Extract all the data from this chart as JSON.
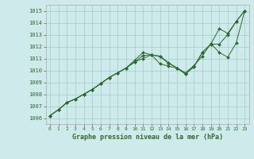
{
  "xlabel": "Graphe pression niveau de la mer (hPa)",
  "xlim": [
    -0.5,
    23.5
  ],
  "ylim": [
    1005.5,
    1015.5
  ],
  "yticks": [
    1006,
    1007,
    1008,
    1009,
    1010,
    1011,
    1012,
    1013,
    1014,
    1015
  ],
  "xticks": [
    0,
    1,
    2,
    3,
    4,
    5,
    6,
    7,
    8,
    9,
    10,
    11,
    12,
    13,
    14,
    15,
    16,
    17,
    18,
    19,
    20,
    21,
    22,
    23
  ],
  "bg_color": "#ceeaea",
  "grid_color": "#9ecece",
  "line_color": "#2d6a2d",
  "lines": [
    [
      1006.2,
      1006.7,
      1007.3,
      1007.6,
      1008.0,
      1008.4,
      1008.9,
      1009.4,
      1009.8,
      1010.2,
      1010.7,
      1011.25,
      1011.3,
      1011.15,
      1010.6,
      1010.2,
      1009.7,
      1010.3,
      1011.5,
      1012.2,
      1012.2,
      1013.0,
      1014.1,
      1015.0
    ],
    [
      1006.2,
      1006.7,
      1007.3,
      1007.6,
      1008.0,
      1008.4,
      1008.9,
      1009.4,
      1009.8,
      1010.2,
      1010.85,
      1011.5,
      1011.3,
      1010.55,
      1010.35,
      1010.2,
      1009.8,
      1010.4,
      1011.2,
      1012.25,
      1011.5,
      1011.1,
      1012.3,
      1015.0
    ],
    [
      1006.2,
      1006.7,
      1007.3,
      1007.6,
      1008.0,
      1008.4,
      1008.9,
      1009.4,
      1009.8,
      1010.2,
      1010.7,
      1011.0,
      1011.3,
      1011.2,
      1010.65,
      1010.2,
      1009.7,
      1010.3,
      1011.5,
      1012.2,
      1013.5,
      1013.1,
      1014.1,
      1015.0
    ]
  ]
}
